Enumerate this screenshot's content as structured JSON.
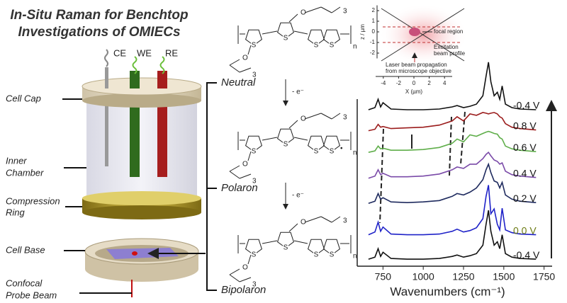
{
  "title": [
    "In-Situ Raman for Benchtop",
    "Investigations of OMIECs"
  ],
  "electrodes": [
    "CE",
    "WE",
    "RE"
  ],
  "cell_labels": [
    "Cell Cap",
    [
      "Inner",
      "Chamber"
    ],
    [
      "Compression",
      "Ring"
    ],
    "Cell Base",
    [
      "Confocal",
      "Probe Beam"
    ]
  ],
  "states": [
    "Neutral",
    "Polaron",
    "Bipolaron"
  ],
  "step_label": "- e⁻",
  "structure_symbols": {
    "sulfur": "S",
    "oxygen": "O",
    "repeat": "3",
    "polymer": "n",
    "radical": "•"
  },
  "chart_data": [
    {
      "type": "line",
      "xlabel": "Wavenumbers (cm⁻¹)",
      "xlim": [
        590,
        1800
      ],
      "xticks": [
        750,
        1000,
        1250,
        1500,
        1750
      ],
      "ylim": [
        0,
        30
      ],
      "x": [
        660,
        700,
        720,
        735,
        750,
        800,
        900,
        1000,
        1100,
        1180,
        1210,
        1250,
        1290,
        1330,
        1370,
        1390,
        1405,
        1420,
        1440,
        1460,
        1475,
        1490,
        1510,
        1550,
        1600,
        1700
      ],
      "series": [
        {
          "name": "-0.4 V",
          "color": "#111111",
          "label_color": "#111111",
          "values": [
            22.4,
            22.7,
            23.9,
            22.8,
            23.4,
            22.5,
            22.4,
            22.4,
            22.5,
            22.8,
            23.0,
            22.7,
            22.9,
            23.2,
            24.4,
            27.2,
            29.2,
            26.4,
            24.4,
            24.9,
            23.9,
            25.8,
            23.2,
            22.7,
            22.5,
            22.4
          ]
        },
        {
          "name": "0.8 V",
          "color": "#9b1c1c",
          "label_color": "#111111",
          "values": [
            19.4,
            19.6,
            20.3,
            19.9,
            20.0,
            19.7,
            19.8,
            19.9,
            20.2,
            20.8,
            21.4,
            20.8,
            21.8,
            21.6,
            22.0,
            21.9,
            21.8,
            21.9,
            22.0,
            21.8,
            21.4,
            21.2,
            20.4,
            19.9,
            19.7,
            19.5
          ]
        },
        {
          "name": "0.6 V",
          "color": "#5fae4a",
          "label_color": "#111111",
          "values": [
            16.3,
            16.5,
            17.2,
            16.8,
            16.9,
            16.6,
            16.6,
            16.7,
            17.0,
            17.6,
            18.2,
            17.8,
            18.8,
            18.6,
            19.0,
            19.2,
            19.3,
            19.2,
            19.0,
            18.9,
            18.4,
            18.2,
            17.2,
            16.8,
            16.6,
            16.4
          ]
        },
        {
          "name": "0.4 V",
          "color": "#7a4aa8",
          "label_color": "#111111",
          "values": [
            12.6,
            12.9,
            13.8,
            13.1,
            13.3,
            12.8,
            12.8,
            12.9,
            13.2,
            13.8,
            14.2,
            14.0,
            14.6,
            14.6,
            15.4,
            16.0,
            16.3,
            15.8,
            15.2,
            15.0,
            14.6,
            14.8,
            13.6,
            13.1,
            12.9,
            12.7
          ]
        },
        {
          "name": "0.2 V",
          "color": "#1e2a5e",
          "label_color": "#111111",
          "values": [
            9.0,
            9.3,
            10.4,
            9.6,
            9.8,
            9.2,
            9.1,
            9.2,
            9.4,
            10.0,
            10.4,
            10.2,
            10.6,
            11.2,
            12.4,
            13.8,
            14.6,
            13.4,
            12.2,
            12.0,
            11.2,
            12.0,
            10.2,
            9.6,
            9.3,
            9.1
          ]
        },
        {
          "name": "0.0 V",
          "color": "#1f22c8",
          "label_color": "#6b7a12",
          "values": [
            4.5,
            4.9,
            6.3,
            5.0,
            5.6,
            4.6,
            4.5,
            4.5,
            4.6,
            5.0,
            5.3,
            4.9,
            5.1,
            5.5,
            6.8,
            10.0,
            11.6,
            7.5,
            8.2,
            6.0,
            5.2,
            8.3,
            5.2,
            4.8,
            4.6,
            4.5
          ]
        },
        {
          "name": "-0.4 V",
          "color": "#111111",
          "label_color": "#111111",
          "values": [
            1.0,
            1.3,
            2.5,
            1.4,
            2.0,
            1.1,
            1.0,
            1.0,
            1.1,
            1.4,
            1.6,
            1.3,
            1.5,
            1.8,
            3.0,
            6.0,
            8.0,
            5.0,
            3.0,
            3.5,
            2.5,
            4.5,
            1.8,
            1.3,
            1.1,
            1.0
          ]
        }
      ]
    },
    {
      "type": "inset",
      "xlabel": "X (µm)",
      "ylabel": "z / µm",
      "xlim": [
        -5,
        5
      ],
      "xticks": [
        -4,
        -2,
        0,
        2,
        4
      ],
      "ylim": [
        -2.5,
        2.5
      ],
      "yticks": [
        2,
        1,
        0,
        -1,
        -2
      ],
      "annotations": [
        "focal region",
        "Excitation",
        "beam profile",
        "Laser beam propagation",
        "from microscope objective"
      ]
    }
  ]
}
